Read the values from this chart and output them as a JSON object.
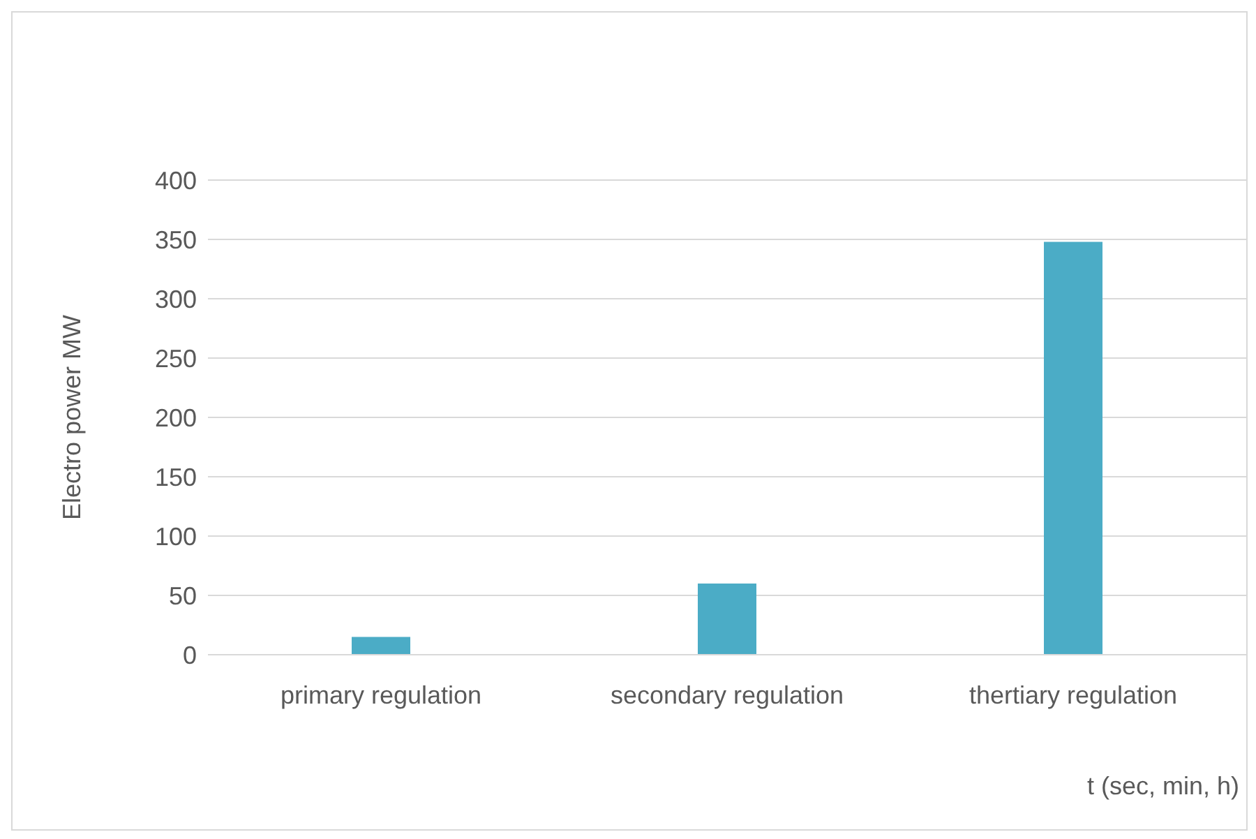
{
  "chart_data": {
    "type": "bar",
    "xlabel": "t (sec, min, h)",
    "ylabel": "Electro power MW",
    "categories": [
      "primary regulation",
      "secondary regulation",
      "thertiary regulation"
    ],
    "values": [
      15,
      60,
      348
    ],
    "color": "#4bacc6",
    "ylim": [
      0,
      400
    ],
    "yticks": [
      0,
      50,
      100,
      150,
      200,
      250,
      300,
      350,
      400
    ],
    "grid": "y"
  }
}
